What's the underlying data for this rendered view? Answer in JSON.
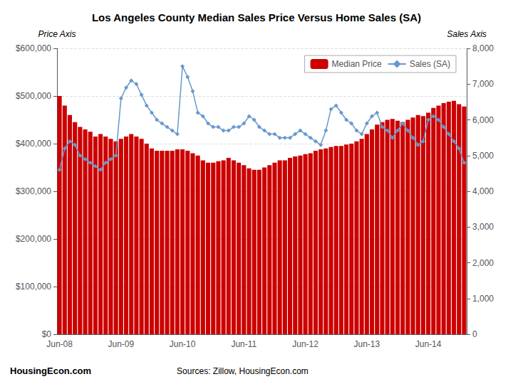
{
  "chart_data": {
    "type": "bar",
    "title": "Los Angeles County Median Sales Price Versus Home Sales (SA)",
    "ylabel": "Price Axis",
    "y2label": "Sales Axis",
    "categories": [
      "Jun-08",
      null,
      null,
      null,
      null,
      null,
      null,
      null,
      null,
      null,
      null,
      null,
      "Jun-09",
      null,
      null,
      null,
      null,
      null,
      null,
      null,
      null,
      null,
      null,
      null,
      "Jun-10",
      null,
      null,
      null,
      null,
      null,
      null,
      null,
      null,
      null,
      null,
      null,
      "Jun-11",
      null,
      null,
      null,
      null,
      null,
      null,
      null,
      null,
      null,
      null,
      null,
      "Jun-12",
      null,
      null,
      null,
      null,
      null,
      null,
      null,
      null,
      null,
      null,
      null,
      "Jun-13",
      null,
      null,
      null,
      null,
      null,
      null,
      null,
      null,
      null,
      null,
      null,
      "Jun-14",
      null,
      null,
      null,
      null,
      null,
      null,
      null
    ],
    "series": [
      {
        "name": "Median Price",
        "type": "bar",
        "color": "#cc0000",
        "values": [
          500000,
          480000,
          460000,
          445000,
          435000,
          430000,
          425000,
          415000,
          420000,
          415000,
          410000,
          405000,
          410000,
          415000,
          420000,
          415000,
          410000,
          400000,
          390000,
          385000,
          385000,
          385000,
          385000,
          388000,
          388000,
          385000,
          380000,
          375000,
          365000,
          360000,
          360000,
          363000,
          365000,
          370000,
          365000,
          360000,
          355000,
          348000,
          345000,
          345000,
          350000,
          355000,
          360000,
          365000,
          365000,
          370000,
          373000,
          375000,
          378000,
          380000,
          385000,
          388000,
          390000,
          393000,
          395000,
          395000,
          398000,
          400000,
          405000,
          410000,
          420000,
          430000,
          440000,
          445000,
          450000,
          452000,
          448000,
          445000,
          450000,
          455000,
          460000,
          458000,
          465000,
          475000,
          480000,
          485000,
          488000,
          490000,
          483000,
          478000
        ]
      },
      {
        "name": "Sales (SA)",
        "type": "line",
        "axis": "y2",
        "color": "#6699cc",
        "marker": "diamond",
        "values": [
          4600,
          5200,
          5400,
          5300,
          5000,
          4900,
          4800,
          4700,
          4600,
          4800,
          4900,
          5000,
          6600,
          6900,
          7100,
          7000,
          6700,
          6400,
          6200,
          6000,
          5900,
          5800,
          5700,
          5600,
          7500,
          7200,
          6800,
          6200,
          6100,
          5900,
          5800,
          5800,
          5700,
          5700,
          5800,
          5800,
          5900,
          6100,
          6000,
          5800,
          5700,
          5600,
          5600,
          5500,
          5500,
          5500,
          5600,
          5700,
          5600,
          5500,
          5400,
          5300,
          5700,
          6300,
          6400,
          6200,
          6000,
          5900,
          5700,
          5600,
          5900,
          6100,
          6200,
          5800,
          5700,
          5500,
          5700,
          5900,
          5700,
          5500,
          5300,
          5400,
          6000,
          6100,
          6000,
          5800,
          5600,
          5400,
          5200,
          4800
        ]
      }
    ],
    "ylim": [
      0,
      600000
    ],
    "yticks": [
      {
        "value": 0,
        "label": "$0"
      },
      {
        "value": 100000,
        "label": "$100,000"
      },
      {
        "value": 200000,
        "label": "$200,000"
      },
      {
        "value": 300000,
        "label": "$300,000"
      },
      {
        "value": 400000,
        "label": "$400,000"
      },
      {
        "value": 500000,
        "label": "$500,000"
      },
      {
        "value": 600000,
        "label": "$600,000"
      }
    ],
    "y2lim": [
      0,
      8000
    ],
    "y2ticks": [
      0,
      {
        "value": 1000,
        "label": "1,000"
      },
      {
        "value": 2000,
        "label": "2,000"
      },
      {
        "value": 3000,
        "label": "3,000"
      },
      {
        "value": 4000,
        "label": "4,000"
      },
      {
        "value": 5000,
        "label": "5,000"
      },
      {
        "value": 6000,
        "label": "6,000"
      },
      {
        "value": 7000,
        "label": "7,000"
      },
      {
        "value": 8000,
        "label": "8,000"
      }
    ],
    "grid": true,
    "legend": "upper right",
    "annotations": [
      {
        "text": "Housing",
        "color": "#000000"
      },
      {
        "text": "Econ.com",
        "color": "#008800"
      },
      {
        "text": "Sources: Zillow, HousingEcon.com"
      }
    ]
  }
}
